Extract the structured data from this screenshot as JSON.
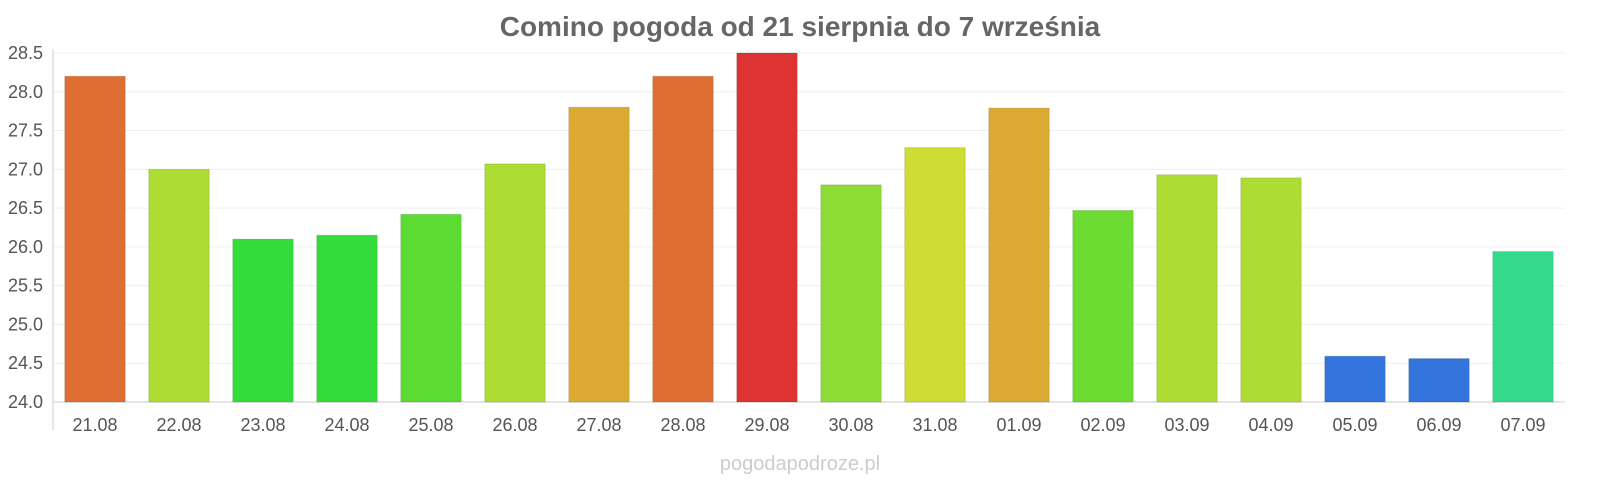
{
  "chart_data": {
    "type": "bar",
    "title": "Comino pogoda od 21 sierpnia do 7 września",
    "xlabel": "",
    "ylabel": "",
    "categories": [
      "21.08",
      "22.08",
      "23.08",
      "24.08",
      "25.08",
      "26.08",
      "27.08",
      "28.08",
      "29.08",
      "30.08",
      "31.08",
      "01.09",
      "02.09",
      "03.09",
      "04.09",
      "05.09",
      "06.09",
      "07.09"
    ],
    "values": [
      28.2,
      27.0,
      26.1,
      26.15,
      26.42,
      27.07,
      27.8,
      28.2,
      28.5,
      26.8,
      27.28,
      27.79,
      26.47,
      26.93,
      26.89,
      24.59,
      24.56,
      25.94
    ],
    "colors": [
      "#de6e33",
      "#addc33",
      "#33dc3a",
      "#33dc3a",
      "#5cdc33",
      "#addc33",
      "#dca933",
      "#de6e33",
      "#dd3333",
      "#8cdc33",
      "#cfdc33",
      "#dca933",
      "#6cdc33",
      "#addc33",
      "#addc33",
      "#3374dd",
      "#3374dd",
      "#33da8a"
    ],
    "yticks": [
      "24.0",
      "24.5",
      "25.0",
      "25.5",
      "26.0",
      "26.5",
      "27.0",
      "27.5",
      "28.0",
      "28.5"
    ],
    "ylim": [
      24.0,
      28.5
    ],
    "grid": true,
    "legend": "none"
  },
  "watermark": "pogodapodroze.pl"
}
